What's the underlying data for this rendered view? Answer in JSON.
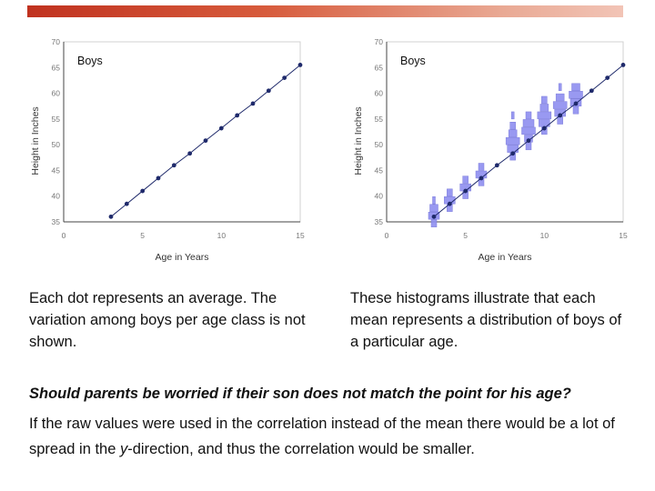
{
  "slide": {
    "accent_color": "#c0321f",
    "caption_left": "Each dot represents an average. The variation among boys per age class is not shown.",
    "caption_right": "These histograms illustrate that each mean represents a distribution of boys of a particular age.",
    "question": "Should parents be worried if their son does not match the point for his age?",
    "body_before": "If the raw values were used in the correlation instead of the mean there would be a lot of spread in the ",
    "body_italic": "y",
    "body_after": "-direction, and thus the correlation would be smaller."
  },
  "chart_data": [
    {
      "type": "line",
      "title": "Boys",
      "xlabel": "Age in Years",
      "ylabel": "Height in Inches",
      "xlim": [
        0,
        15
      ],
      "ylim": [
        35,
        70
      ],
      "xticks": [
        0,
        5,
        10,
        15
      ],
      "yticks": [
        35,
        40,
        45,
        50,
        55,
        60,
        65,
        70
      ],
      "x": [
        3,
        4,
        5,
        6,
        7,
        8,
        9,
        10,
        11,
        12,
        13,
        14,
        15
      ],
      "y": [
        36,
        38.5,
        41,
        43.5,
        46,
        48.3,
        50.8,
        53.2,
        55.7,
        58,
        60.5,
        63,
        65.5
      ],
      "line_color": "#1f2a6b",
      "histograms": []
    },
    {
      "type": "line",
      "title": "Boys",
      "xlabel": "Age in Years",
      "ylabel": "Height in Inches",
      "xlim": [
        0,
        15
      ],
      "ylim": [
        35,
        70
      ],
      "xticks": [
        0,
        5,
        10,
        15
      ],
      "yticks": [
        35,
        40,
        45,
        50,
        55,
        60,
        65,
        70
      ],
      "x": [
        3,
        4,
        5,
        6,
        7,
        8,
        9,
        10,
        11,
        12,
        13,
        14,
        15
      ],
      "y": [
        36,
        38.5,
        41,
        43.5,
        46,
        48.3,
        50.8,
        53.2,
        55.7,
        58,
        60.5,
        63,
        65.5
      ],
      "line_color": "#1f2a6b",
      "hist_color": "#8f8ff0",
      "histograms": [
        {
          "age": 3,
          "bins": [
            [
              34,
              2
            ],
            [
              35.5,
              4
            ],
            [
              37,
              3
            ],
            [
              38.5,
              1
            ]
          ]
        },
        {
          "age": 4,
          "bins": [
            [
              37,
              2
            ],
            [
              38.5,
              4
            ],
            [
              40,
              2
            ]
          ]
        },
        {
          "age": 5,
          "bins": [
            [
              39.5,
              2
            ],
            [
              41,
              4
            ],
            [
              42.5,
              2
            ]
          ]
        },
        {
          "age": 6,
          "bins": [
            [
              42,
              2
            ],
            [
              43.5,
              4
            ],
            [
              45,
              2
            ]
          ]
        },
        {
          "age": 8,
          "bins": [
            [
              47,
              2
            ],
            [
              48.5,
              4
            ],
            [
              50,
              5
            ],
            [
              51.5,
              3
            ],
            [
              53,
              2
            ],
            [
              55,
              1
            ]
          ]
        },
        {
          "age": 9,
          "bins": [
            [
              49,
              2
            ],
            [
              50.5,
              3
            ],
            [
              52,
              5
            ],
            [
              53.5,
              4
            ],
            [
              55,
              2
            ]
          ]
        },
        {
          "age": 10,
          "bins": [
            [
              52,
              2
            ],
            [
              53.5,
              4
            ],
            [
              55,
              5
            ],
            [
              56.5,
              3
            ],
            [
              58,
              2
            ]
          ]
        },
        {
          "age": 11,
          "bins": [
            [
              54,
              2
            ],
            [
              55.5,
              4
            ],
            [
              57,
              5
            ],
            [
              58.5,
              3
            ],
            [
              60.5,
              1
            ]
          ]
        },
        {
          "age": 12,
          "bins": [
            [
              56,
              2
            ],
            [
              57.5,
              4
            ],
            [
              59,
              5
            ],
            [
              60.5,
              3
            ]
          ]
        }
      ]
    }
  ]
}
